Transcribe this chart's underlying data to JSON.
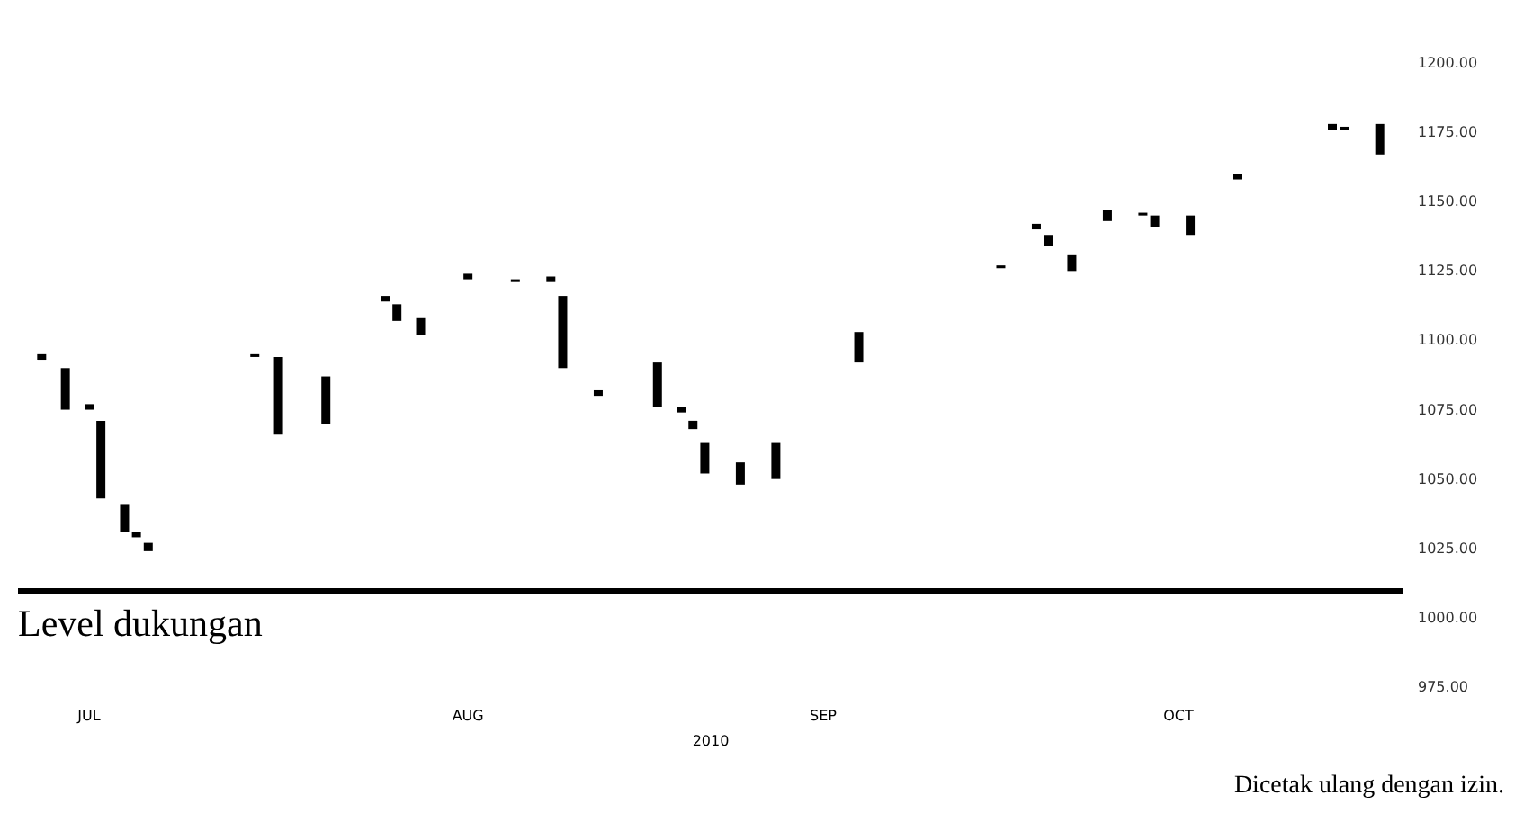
{
  "chart_data": {
    "type": "bar",
    "x": [
      "2010-06-27",
      "2010-06-29",
      "2010-07-01",
      "2010-07-02",
      "2010-07-04",
      "2010-07-05",
      "2010-07-06",
      "2010-07-15",
      "2010-07-17",
      "2010-07-21",
      "2010-07-26",
      "2010-07-27",
      "2010-07-29",
      "2010-08-02",
      "2010-08-06",
      "2010-08-09",
      "2010-08-10",
      "2010-08-13",
      "2010-08-18",
      "2010-08-20",
      "2010-08-21",
      "2010-08-22",
      "2010-08-25",
      "2010-08-28",
      "2010-09-04",
      "2010-09-16",
      "2010-09-19",
      "2010-09-20",
      "2010-09-22",
      "2010-09-25",
      "2010-09-28",
      "2010-09-29",
      "2010-10-02",
      "2010-10-06",
      "2010-10-14",
      "2010-10-15",
      "2010-10-18"
    ],
    "base": [
      1093,
      1075,
      1075,
      1043,
      1031,
      1029,
      1024,
      1094,
      1066,
      1070,
      1114,
      1107,
      1102,
      1122,
      1121,
      1121,
      1090,
      1080,
      1076,
      1074,
      1068,
      1052,
      1048,
      1050,
      1092,
      1126,
      1140,
      1134,
      1125,
      1143,
      1145,
      1141,
      1138,
      1158,
      1176,
      1176,
      1167
    ],
    "values": [
      2,
      15,
      2,
      28,
      10,
      2,
      3,
      1,
      28,
      17,
      2,
      6,
      6,
      2,
      1,
      2,
      26,
      2,
      16,
      2,
      3,
      11,
      8,
      13,
      11,
      1,
      2,
      4,
      6,
      4,
      1,
      4,
      7,
      2,
      2,
      1,
      11
    ],
    "color": "#000000",
    "xlim": [
      "2010-06-25",
      "2010-10-20"
    ],
    "xticks": [
      {
        "value": "2010-07-01",
        "label": "JUL"
      },
      {
        "value": "2010-08-02",
        "label": "AUG"
      },
      {
        "value": "2010-09-01",
        "label": "SEP"
      },
      {
        "value": "2010-10-01",
        "label": "OCT"
      }
    ],
    "xlabel": "2010",
    "ylim": [
      975,
      1200
    ],
    "yticks": [
      {
        "value": 975,
        "label": "975.00"
      },
      {
        "value": 1000,
        "label": "1000.00"
      },
      {
        "value": 1025,
        "label": "1025.00"
      },
      {
        "value": 1050,
        "label": "1050.00"
      },
      {
        "value": 1075,
        "label": "1075.00"
      },
      {
        "value": 1100,
        "label": "1100.00"
      },
      {
        "value": 1125,
        "label": "1125.00"
      },
      {
        "value": 1150,
        "label": "1150.00"
      },
      {
        "value": 1175,
        "label": "1175.00"
      },
      {
        "value": 1200,
        "label": "1200.00"
      }
    ],
    "ref_lines": [
      {
        "axis": "y",
        "value": 1010,
        "label": "Level dukungan",
        "color": "#000000"
      }
    ],
    "annotations": [
      "Dicetak ulang dengan izin."
    ]
  }
}
